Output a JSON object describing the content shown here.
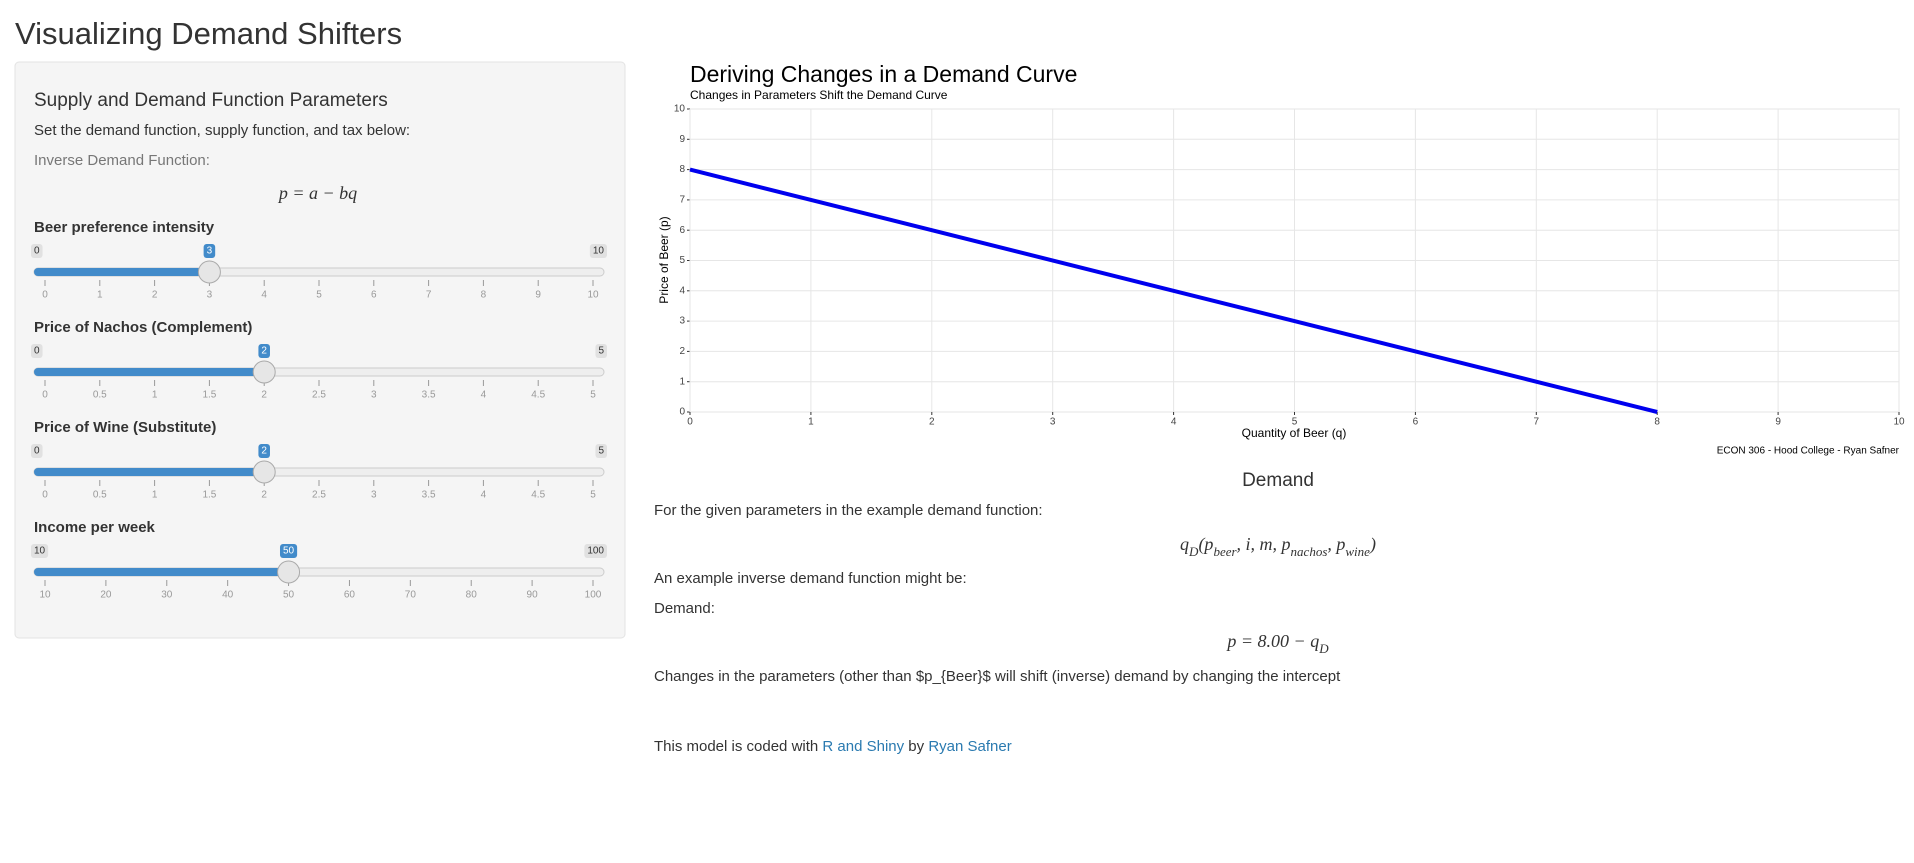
{
  "title": "Visualizing Demand Shifters",
  "sidebar": {
    "heading": "Supply and Demand Function Parameters",
    "intro": "Set the demand function, supply function, and tax below:",
    "formula_label": "Inverse Demand Function:",
    "formula": "p = a − bq",
    "sliders": [
      {
        "label": "Beer preference intensity",
        "min": 0,
        "max": 10,
        "value": 3,
        "ticks": [
          0,
          1,
          2,
          3,
          4,
          5,
          6,
          7,
          8,
          9,
          10
        ]
      },
      {
        "label": "Price of Nachos (Complement)",
        "min": 0,
        "max": 5,
        "value": 2,
        "ticks": [
          0,
          0.5,
          1,
          1.5,
          2,
          2.5,
          3,
          3.5,
          4,
          4.5,
          5
        ]
      },
      {
        "label": "Price of Wine (Substitute)",
        "min": 0,
        "max": 5,
        "value": 2,
        "ticks": [
          0,
          0.5,
          1,
          1.5,
          2,
          2.5,
          3,
          3.5,
          4,
          4.5,
          5
        ]
      },
      {
        "label": "Income per week",
        "min": 10,
        "max": 100,
        "value": 50,
        "ticks": [
          10,
          20,
          30,
          40,
          50,
          60,
          70,
          80,
          90,
          100
        ]
      }
    ]
  },
  "chart_data": {
    "type": "line",
    "title": "Deriving Changes in a Demand Curve",
    "subtitle": "Changes in Parameters Shift the Demand Curve",
    "x_label": "Quantity of Beer (q)",
    "y_label": "Price of Beer (p)",
    "caption": "ECON 306 - Hood College - Ryan Safner",
    "x": [
      0,
      8
    ],
    "values": [
      8,
      0
    ],
    "color": "#0000ee",
    "xlim": [
      0,
      10
    ],
    "ylim": [
      0,
      10
    ],
    "xticks": [
      0,
      1,
      2,
      3,
      4,
      5,
      6,
      7,
      8,
      9,
      10
    ],
    "yticks": [
      0,
      1,
      2,
      3,
      4,
      5,
      6,
      7,
      8,
      9,
      10
    ],
    "grid": true
  },
  "demand": {
    "heading": "Demand",
    "intro": "For the given parameters in the example demand function:",
    "function": [
      "q",
      "D",
      "(p",
      "beer",
      ", i, m, p",
      "nachos",
      ", p",
      "wine",
      ")"
    ],
    "inverse_intro": "An example inverse demand function might be:",
    "label": "Demand:",
    "inverse": [
      "p = 8.00 − q",
      "D"
    ],
    "note": "Changes in the parameters (other than $p_{Beer}$ will shift (inverse) demand by changing the intercept",
    "credit": [
      "This model is coded with ",
      "R and Shiny",
      " by ",
      "Ryan Safner"
    ]
  }
}
